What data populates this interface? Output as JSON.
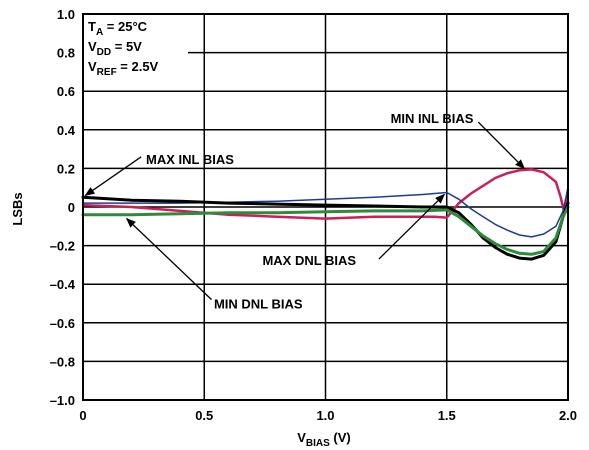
{
  "chart_data": {
    "type": "line",
    "xlabel": "V",
    "xlabel_sub": "BIAS",
    "xlabel_unit": " (V)",
    "ylabel": "LSBs",
    "xlim": [
      0,
      2.0
    ],
    "ylim": [
      -1.0,
      1.0
    ],
    "grid": true,
    "x_ticks": [
      {
        "value": 0,
        "label": "0"
      },
      {
        "value": 0.5,
        "label": "0.5"
      },
      {
        "value": 1.0,
        "label": "1.0"
      },
      {
        "value": 1.5,
        "label": "1.5"
      },
      {
        "value": 2.0,
        "label": "2.0"
      }
    ],
    "y_ticks": [
      {
        "value": 1.0,
        "label": "1.0"
      },
      {
        "value": 0.8,
        "label": "0.8"
      },
      {
        "value": 0.6,
        "label": "0.6"
      },
      {
        "value": 0.4,
        "label": "0.4"
      },
      {
        "value": 0.2,
        "label": "0.2"
      },
      {
        "value": 0,
        "label": "0"
      },
      {
        "value": -0.2,
        "label": "–0.2"
      },
      {
        "value": -0.4,
        "label": "–0.4"
      },
      {
        "value": -0.6,
        "label": "–0.6"
      },
      {
        "value": -0.8,
        "label": "–0.8"
      },
      {
        "value": -1.0,
        "label": "–1.0"
      }
    ],
    "conditions": [
      {
        "main": "T",
        "sub": "A",
        "rest": " = 25°C"
      },
      {
        "main": "V",
        "sub": "DD",
        "rest": " = 5V"
      },
      {
        "main": "V",
        "sub": "REF",
        "rest": " = 2.5V"
      }
    ],
    "series": [
      {
        "color": "#cc1f5a",
        "width": 2.5,
        "points": [
          [
            0,
            0.01
          ],
          [
            0.2,
            0.0
          ],
          [
            0.4,
            -0.02
          ],
          [
            0.6,
            -0.04
          ],
          [
            0.8,
            -0.05
          ],
          [
            1.0,
            -0.06
          ],
          [
            1.2,
            -0.05
          ],
          [
            1.35,
            -0.05
          ],
          [
            1.45,
            -0.05
          ],
          [
            1.5,
            -0.055
          ],
          [
            1.55,
            0.02
          ],
          [
            1.6,
            0.07
          ],
          [
            1.65,
            0.11
          ],
          [
            1.7,
            0.15
          ],
          [
            1.75,
            0.175
          ],
          [
            1.8,
            0.19
          ],
          [
            1.85,
            0.195
          ],
          [
            1.9,
            0.18
          ],
          [
            1.95,
            0.13
          ],
          [
            1.97,
            0.05
          ],
          [
            1.985,
            -0.03
          ],
          [
            2.0,
            0.09
          ]
        ]
      },
      {
        "color": "#1f3a93",
        "width": 1.5,
        "points": [
          [
            0,
            0.02
          ],
          [
            0.2,
            0.02
          ],
          [
            0.4,
            0.02
          ],
          [
            0.6,
            0.025
          ],
          [
            0.8,
            0.03
          ],
          [
            1.0,
            0.04
          ],
          [
            1.2,
            0.05
          ],
          [
            1.4,
            0.065
          ],
          [
            1.5,
            0.075
          ],
          [
            1.55,
            0.04
          ],
          [
            1.6,
            -0.01
          ],
          [
            1.65,
            -0.05
          ],
          [
            1.7,
            -0.09
          ],
          [
            1.75,
            -0.12
          ],
          [
            1.8,
            -0.145
          ],
          [
            1.85,
            -0.155
          ],
          [
            1.9,
            -0.14
          ],
          [
            1.95,
            -0.1
          ],
          [
            1.98,
            -0.02
          ],
          [
            2.0,
            0.1
          ]
        ]
      },
      {
        "color": "#000000",
        "width": 3,
        "points": [
          [
            0,
            0.05
          ],
          [
            0.2,
            0.035
          ],
          [
            0.4,
            0.03
          ],
          [
            0.6,
            0.02
          ],
          [
            0.8,
            0.015
          ],
          [
            1.0,
            0.01
          ],
          [
            1.2,
            0.005
          ],
          [
            1.4,
            0.0
          ],
          [
            1.5,
            0.0
          ],
          [
            1.55,
            -0.03
          ],
          [
            1.6,
            -0.09
          ],
          [
            1.65,
            -0.16
          ],
          [
            1.7,
            -0.21
          ],
          [
            1.75,
            -0.245
          ],
          [
            1.8,
            -0.265
          ],
          [
            1.85,
            -0.27
          ],
          [
            1.9,
            -0.25
          ],
          [
            1.95,
            -0.18
          ],
          [
            1.98,
            -0.05
          ],
          [
            2.0,
            0.02
          ]
        ]
      },
      {
        "color": "#2e8b3a",
        "width": 3,
        "points": [
          [
            0,
            -0.04
          ],
          [
            0.2,
            -0.04
          ],
          [
            0.4,
            -0.035
          ],
          [
            0.6,
            -0.03
          ],
          [
            0.8,
            -0.03
          ],
          [
            1.0,
            -0.025
          ],
          [
            1.2,
            -0.02
          ],
          [
            1.4,
            -0.02
          ],
          [
            1.5,
            -0.015
          ],
          [
            1.55,
            -0.05
          ],
          [
            1.6,
            -0.1
          ],
          [
            1.65,
            -0.15
          ],
          [
            1.7,
            -0.19
          ],
          [
            1.75,
            -0.22
          ],
          [
            1.8,
            -0.24
          ],
          [
            1.85,
            -0.245
          ],
          [
            1.9,
            -0.23
          ],
          [
            1.95,
            -0.16
          ],
          [
            1.98,
            -0.05
          ],
          [
            2.0,
            0.0
          ]
        ]
      }
    ],
    "annotations": [
      {
        "text": "MIN INL BIAS",
        "anchor": "end",
        "text_at": [
          1.61,
          0.46
        ],
        "line_from": [
          1.63,
          0.44
        ],
        "line_to": [
          1.82,
          0.2
        ]
      },
      {
        "text": "MAX INL BIAS",
        "anchor": "start",
        "text_at": [
          0.26,
          0.25
        ],
        "line_from": [
          0.24,
          0.26
        ],
        "line_to": [
          0.01,
          0.06
        ]
      },
      {
        "text": "MAX DNL BIAS",
        "anchor": "start",
        "text_at": [
          0.74,
          -0.275
        ],
        "line_from": [
          1.22,
          -0.27
        ],
        "line_to": [
          1.49,
          0.065
        ]
      },
      {
        "text": "MIN DNL BIAS",
        "anchor": "start",
        "text_at": [
          0.54,
          -0.5
        ],
        "line_from": [
          0.53,
          -0.48
        ],
        "line_to": [
          0.18,
          -0.06
        ]
      }
    ]
  }
}
